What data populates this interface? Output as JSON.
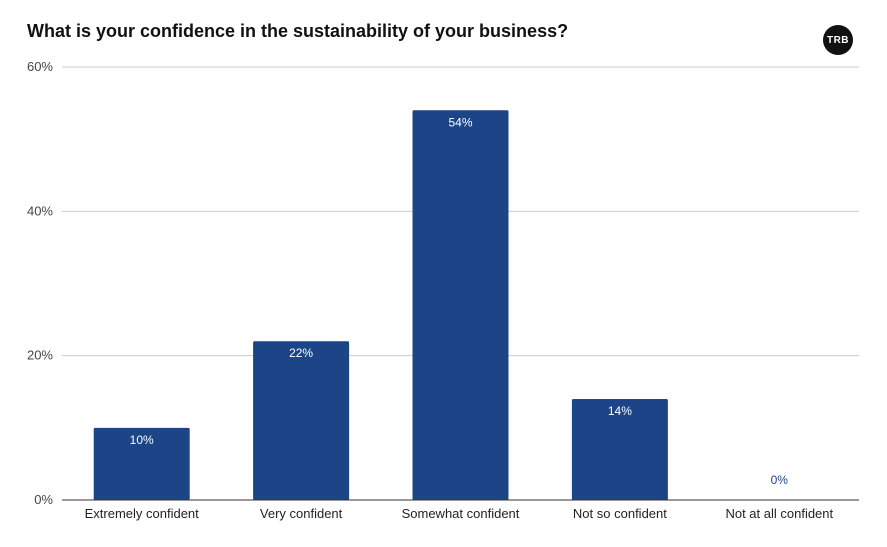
{
  "logo": {
    "text": "TRB"
  },
  "chart_data": {
    "type": "bar",
    "title": "What is your confidence in the sustainability of your business?",
    "categories": [
      "Extremely confident",
      "Very confident",
      "Somewhat confident",
      "Not so confident",
      "Not at all confident"
    ],
    "values": [
      10,
      22,
      54,
      14,
      0
    ],
    "data_labels": [
      "10%",
      "22%",
      "54%",
      "14%",
      "0%"
    ],
    "y_ticks": [
      0,
      20,
      40,
      60
    ],
    "y_tick_labels": [
      "0%",
      "20%",
      "40%",
      "60%"
    ],
    "ylim": [
      0,
      60
    ],
    "grid": true,
    "legend": "none",
    "colors": {
      "bar": "#1c4587",
      "grid": "#cccccc",
      "axis": "#333333",
      "label_inside": "#ffffff",
      "label_outside": "#1c4587"
    }
  }
}
